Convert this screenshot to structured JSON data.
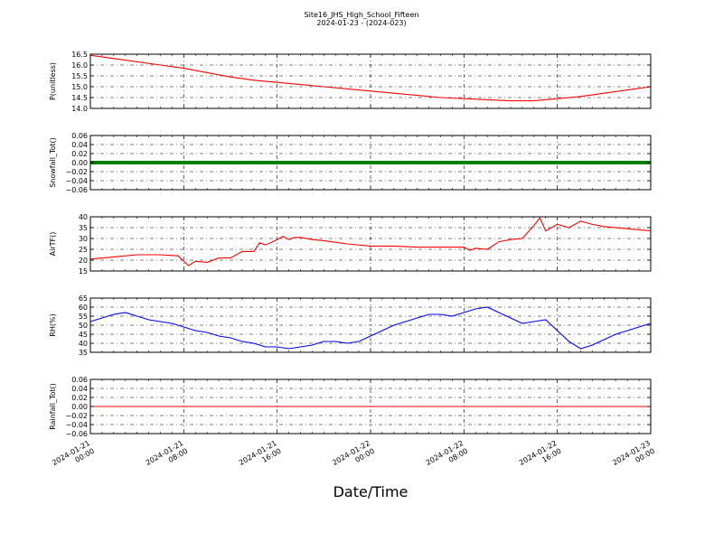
{
  "chart_data": {
    "title": "Site16_JHS_High_School_Fifteen",
    "subtitle": "2024-01-23 - (2024-023)",
    "xlabel": "Date/Time",
    "x_range": [
      "2024-01-21 00:00",
      "2024-01-23 00:00"
    ],
    "x_ticks": [
      [
        "2024-01-21",
        "00:00"
      ],
      [
        "2024-01-21",
        "08:00"
      ],
      [
        "2024-01-21",
        "16:00"
      ],
      [
        "2024-01-22",
        "00:00"
      ],
      [
        "2024-01-22",
        "08:00"
      ],
      [
        "2024-01-22",
        "16:00"
      ],
      [
        "2024-01-23",
        "00:00"
      ]
    ],
    "grid": true,
    "panels": [
      {
        "type": "line",
        "ylabel": "P(unitless)",
        "ylim": [
          14.0,
          16.5
        ],
        "yticks": [
          "14.0",
          "14.5",
          "15.0",
          "15.5",
          "16.0",
          "16.5"
        ],
        "color": "#ff0000",
        "hours": [
          0,
          2,
          4,
          6,
          8,
          10,
          12,
          14,
          16,
          18,
          20,
          22,
          24,
          26,
          28,
          30,
          32,
          34,
          36,
          38,
          40,
          42,
          44,
          46,
          48
        ],
        "values": [
          16.45,
          16.3,
          16.15,
          16.0,
          15.85,
          15.65,
          15.45,
          15.3,
          15.2,
          15.1,
          15.0,
          14.9,
          14.8,
          14.7,
          14.6,
          14.5,
          14.45,
          14.4,
          14.35,
          14.35,
          14.45,
          14.55,
          14.7,
          14.85,
          15.0
        ]
      },
      {
        "type": "line",
        "ylabel": "Snowfall_Tot()",
        "ylim": [
          -0.06,
          0.06
        ],
        "yticks": [
          "−0.06",
          "−0.04",
          "−0.02",
          "0.00",
          "0.02",
          "0.04",
          "0.06"
        ],
        "color": "#008000",
        "hours": [
          0,
          48
        ],
        "values": [
          0.0,
          0.0
        ]
      },
      {
        "type": "line",
        "ylabel": "AirTF()",
        "ylim": [
          15,
          40
        ],
        "yticks": [
          "15",
          "20",
          "25",
          "30",
          "35",
          "40"
        ],
        "color": "#ff0000",
        "hours": [
          0,
          2,
          4,
          6,
          7.5,
          8,
          8.4,
          9,
          10,
          11,
          12,
          13,
          14,
          14.5,
          15,
          16,
          16.5,
          17,
          17.5,
          18,
          19,
          20,
          22,
          24,
          26,
          28,
          30,
          32,
          32.5,
          33,
          34,
          35,
          36,
          37,
          38,
          38.5,
          39,
          40,
          41,
          42,
          43,
          44,
          46,
          48
        ],
        "values": [
          20.5,
          21.5,
          22.5,
          22.5,
          22.0,
          19.5,
          17.5,
          19.5,
          19.0,
          21.0,
          21.0,
          24.0,
          24.0,
          28.0,
          27.0,
          29.5,
          31.0,
          29.5,
          30.5,
          30.5,
          29.5,
          29.0,
          27.5,
          26.5,
          26.5,
          26.0,
          26.0,
          26.0,
          24.5,
          25.5,
          25.0,
          28.5,
          29.5,
          30.0,
          36.0,
          39.5,
          33.5,
          36.5,
          35.0,
          38.0,
          36.5,
          35.5,
          34.5,
          33.5
        ]
      },
      {
        "type": "line",
        "ylabel": "RH(%)",
        "ylim": [
          35,
          65
        ],
        "yticks": [
          "35",
          "40",
          "45",
          "50",
          "55",
          "60",
          "65"
        ],
        "color": "#0000ff",
        "hours": [
          0,
          1,
          2,
          3,
          4,
          5,
          6,
          7,
          8,
          9,
          10,
          11,
          12,
          13,
          14,
          15,
          16,
          17,
          18,
          19,
          20,
          21,
          22,
          23,
          24,
          25,
          26,
          27,
          28,
          29,
          30,
          31,
          32,
          33,
          34,
          35,
          36,
          37,
          38,
          39,
          40,
          41,
          42,
          43,
          44,
          45,
          46,
          47,
          48
        ],
        "values": [
          52,
          54,
          56,
          57,
          55,
          53,
          52,
          51,
          49,
          47,
          46,
          44,
          43,
          41,
          40,
          38,
          38,
          37,
          38,
          39,
          41,
          41,
          40,
          41,
          44,
          47,
          50,
          52,
          54,
          56,
          56,
          55,
          57,
          59,
          60,
          57,
          54,
          51,
          52,
          53,
          47,
          41,
          37,
          39,
          42,
          45,
          47,
          49,
          51
        ]
      },
      {
        "type": "line",
        "ylabel": "Rainfall_Tot()",
        "ylim": [
          -0.06,
          0.06
        ],
        "yticks": [
          "−0.06",
          "−0.04",
          "−0.02",
          "0.00",
          "0.02",
          "0.04",
          "0.06"
        ],
        "color": "#ff0000",
        "hours": [
          0,
          48
        ],
        "values": [
          0.0,
          0.0
        ]
      }
    ]
  }
}
